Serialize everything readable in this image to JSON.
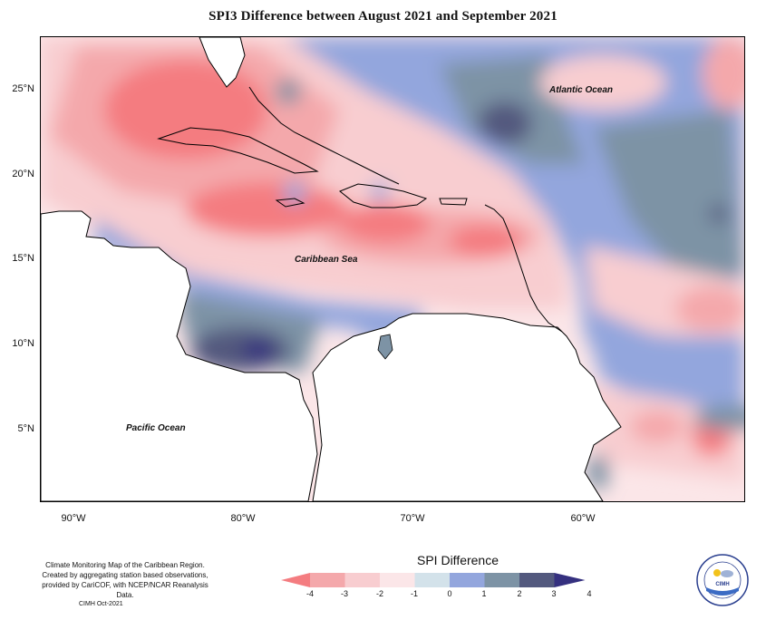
{
  "title": "SPI3 Difference between August 2021 and September 2021",
  "map": {
    "lat_labels": [
      "25°N",
      "20°N",
      "15°N",
      "10°N",
      "5°N"
    ],
    "lon_labels": [
      "90°W",
      "80°W",
      "70°W",
      "60°W"
    ],
    "region_labels": {
      "atlantic": "Atlantic Ocean",
      "caribbean": "Caribbean Sea",
      "pacific": "Pacific Ocean"
    }
  },
  "legend": {
    "title": "SPI Difference",
    "ticks": [
      "-4",
      "-3",
      "-2",
      "-1",
      "0",
      "1",
      "2",
      "3",
      "4"
    ],
    "colors": [
      "#f47c80",
      "#f4a8ab",
      "#f8cdd0",
      "#fbe6e8",
      "#d3e2ea",
      "#93a6dd",
      "#7d93a5",
      "#53597e",
      "#35307f"
    ]
  },
  "footer": {
    "note": "Climate Monitoring Map of the Caribbean Region. Created by aggregating station based observations, provided by CariCOF, with NCEP/NCAR Reanalysis Data.",
    "date": "CIMH Oct-2021",
    "logo_text": "CIMH"
  }
}
